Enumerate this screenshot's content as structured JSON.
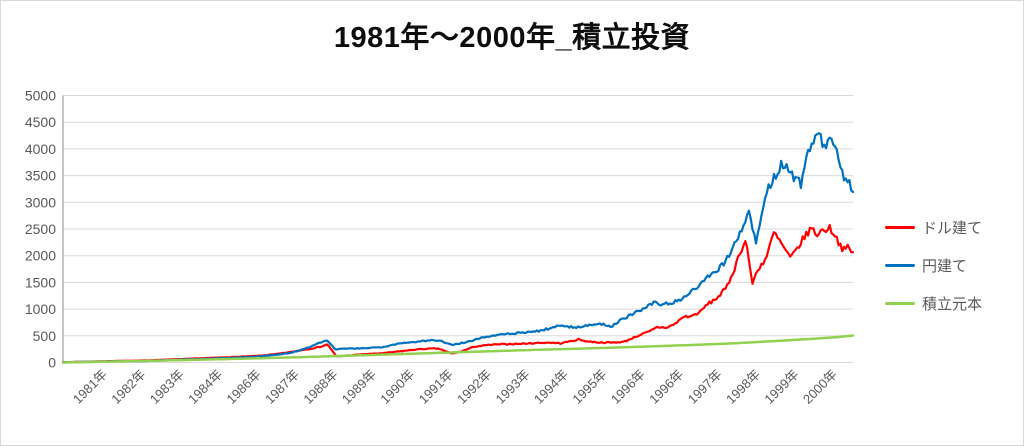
{
  "chart_data": {
    "type": "line",
    "title": "1981年〜2000年_積立投資",
    "x_axis": {
      "tick_labels": [
        "1981年",
        "1982年",
        "1983年",
        "1984年",
        "1986年",
        "1987年",
        "1988年",
        "1989年",
        "1990年",
        "1991年",
        "1992年",
        "1993年",
        "1994年",
        "1995年",
        "1996年",
        "1996年",
        "1997年",
        "1998年",
        "1999年",
        "2000年"
      ],
      "rotation_deg": -45
    },
    "y_axis": {
      "min": 0,
      "max": 5000,
      "tick_interval": 500,
      "tick_labels": [
        "0",
        "500",
        "1000",
        "1500",
        "2000",
        "2500",
        "3000",
        "3500",
        "4000",
        "4500",
        "5000"
      ]
    },
    "grid": {
      "horizontal": true,
      "color": "#d9d9d9"
    },
    "axis_style": {
      "y_axis_line_color": "#8c8c8c",
      "x_axis_line_color": "#d9d9d9",
      "text_color": "#595959",
      "title_color": "#0d0d0d"
    },
    "legend_position": "right",
    "series": [
      {
        "id": "usd",
        "name": "ドル建て",
        "color": "#ff0000",
        "jitter": 0.028,
        "points": [
          [
            0,
            5
          ],
          [
            0.02,
            12
          ],
          [
            0.05,
            22
          ],
          [
            0.07,
            30
          ],
          [
            0.09,
            34
          ],
          [
            0.11,
            42
          ],
          [
            0.13,
            54
          ],
          [
            0.15,
            64
          ],
          [
            0.17,
            75
          ],
          [
            0.19,
            88
          ],
          [
            0.21,
            98
          ],
          [
            0.23,
            112
          ],
          [
            0.25,
            128
          ],
          [
            0.27,
            158
          ],
          [
            0.285,
            188
          ],
          [
            0.3,
            228
          ],
          [
            0.315,
            262
          ],
          [
            0.327,
            300
          ],
          [
            0.335,
            340
          ],
          [
            0.346,
            112
          ],
          [
            0.36,
            130
          ],
          [
            0.38,
            155
          ],
          [
            0.403,
            172
          ],
          [
            0.428,
            212
          ],
          [
            0.45,
            248
          ],
          [
            0.47,
            262
          ],
          [
            0.478,
            250
          ],
          [
            0.492,
            165
          ],
          [
            0.505,
            210
          ],
          [
            0.52,
            295
          ],
          [
            0.54,
            330
          ],
          [
            0.56,
            345
          ],
          [
            0.58,
            350
          ],
          [
            0.6,
            365
          ],
          [
            0.615,
            372
          ],
          [
            0.63,
            360
          ],
          [
            0.645,
            405
          ],
          [
            0.652,
            432
          ],
          [
            0.665,
            392
          ],
          [
            0.68,
            375
          ],
          [
            0.695,
            372
          ],
          [
            0.71,
            388
          ],
          [
            0.72,
            452
          ],
          [
            0.731,
            520
          ],
          [
            0.742,
            578
          ],
          [
            0.752,
            660
          ],
          [
            0.765,
            655
          ],
          [
            0.775,
            725
          ],
          [
            0.785,
            855
          ],
          [
            0.795,
            865
          ],
          [
            0.807,
            950
          ],
          [
            0.815,
            1085
          ],
          [
            0.825,
            1175
          ],
          [
            0.833,
            1285
          ],
          [
            0.84,
            1400
          ],
          [
            0.85,
            1760
          ],
          [
            0.858,
            2110
          ],
          [
            0.865,
            2285
          ],
          [
            0.872,
            1465
          ],
          [
            0.88,
            1755
          ],
          [
            0.89,
            1950
          ],
          [
            0.9,
            2430
          ],
          [
            0.91,
            2205
          ],
          [
            0.921,
            1945
          ],
          [
            0.93,
            2150
          ],
          [
            0.938,
            2335
          ],
          [
            0.947,
            2520
          ],
          [
            0.954,
            2400
          ],
          [
            0.962,
            2480
          ],
          [
            0.97,
            2520
          ],
          [
            0.976,
            2430
          ],
          [
            0.982,
            2250
          ],
          [
            0.988,
            2105
          ],
          [
            0.994,
            2155
          ],
          [
            1,
            2035
          ]
        ]
      },
      {
        "id": "jpy",
        "name": "円建て",
        "color": "#0070c0",
        "jitter": 0.028,
        "points": [
          [
            0,
            5
          ],
          [
            0.02,
            10
          ],
          [
            0.05,
            18
          ],
          [
            0.07,
            24
          ],
          [
            0.09,
            22
          ],
          [
            0.11,
            30
          ],
          [
            0.13,
            42
          ],
          [
            0.15,
            55
          ],
          [
            0.17,
            62
          ],
          [
            0.19,
            72
          ],
          [
            0.21,
            85
          ],
          [
            0.23,
            98
          ],
          [
            0.25,
            115
          ],
          [
            0.27,
            145
          ],
          [
            0.285,
            170
          ],
          [
            0.3,
            230
          ],
          [
            0.315,
            305
          ],
          [
            0.327,
            380
          ],
          [
            0.335,
            415
          ],
          [
            0.344,
            250
          ],
          [
            0.36,
            258
          ],
          [
            0.38,
            268
          ],
          [
            0.403,
            285
          ],
          [
            0.428,
            360
          ],
          [
            0.45,
            395
          ],
          [
            0.465,
            415
          ],
          [
            0.478,
            410
          ],
          [
            0.492,
            330
          ],
          [
            0.505,
            365
          ],
          [
            0.516,
            400
          ],
          [
            0.53,
            470
          ],
          [
            0.55,
            520
          ],
          [
            0.565,
            540
          ],
          [
            0.58,
            555
          ],
          [
            0.6,
            585
          ],
          [
            0.615,
            635
          ],
          [
            0.63,
            695
          ],
          [
            0.645,
            660
          ],
          [
            0.66,
            680
          ],
          [
            0.675,
            715
          ],
          [
            0.682,
            720
          ],
          [
            0.694,
            675
          ],
          [
            0.705,
            785
          ],
          [
            0.72,
            900
          ],
          [
            0.738,
            1040
          ],
          [
            0.75,
            1130
          ],
          [
            0.76,
            1080
          ],
          [
            0.772,
            1130
          ],
          [
            0.782,
            1185
          ],
          [
            0.795,
            1320
          ],
          [
            0.807,
            1450
          ],
          [
            0.82,
            1650
          ],
          [
            0.833,
            1800
          ],
          [
            0.846,
            2050
          ],
          [
            0.858,
            2480
          ],
          [
            0.868,
            2800
          ],
          [
            0.877,
            2260
          ],
          [
            0.888,
            3100
          ],
          [
            0.9,
            3450
          ],
          [
            0.909,
            3720
          ],
          [
            0.918,
            3620
          ],
          [
            0.927,
            3390
          ],
          [
            0.934,
            3350
          ],
          [
            0.941,
            3850
          ],
          [
            0.947,
            4060
          ],
          [
            0.953,
            4300
          ],
          [
            0.958,
            4400
          ],
          [
            0.963,
            4010
          ],
          [
            0.97,
            4250
          ],
          [
            0.976,
            4110
          ],
          [
            0.981,
            3900
          ],
          [
            0.986,
            3520
          ],
          [
            0.992,
            3430
          ],
          [
            1,
            3260
          ]
        ]
      },
      {
        "id": "principal",
        "name": "積立元本",
        "color": "#92d050",
        "jitter": 0,
        "points": [
          [
            0,
            0
          ],
          [
            0.05,
            14
          ],
          [
            0.1,
            28
          ],
          [
            0.15,
            45
          ],
          [
            0.2,
            62
          ],
          [
            0.25,
            80
          ],
          [
            0.3,
            100
          ],
          [
            0.35,
            122
          ],
          [
            0.4,
            145
          ],
          [
            0.45,
            168
          ],
          [
            0.5,
            192
          ],
          [
            0.55,
            215
          ],
          [
            0.6,
            238
          ],
          [
            0.65,
            258
          ],
          [
            0.7,
            280
          ],
          [
            0.75,
            305
          ],
          [
            0.8,
            330
          ],
          [
            0.85,
            360
          ],
          [
            0.9,
            400
          ],
          [
            0.95,
            445
          ],
          [
            0.98,
            475
          ],
          [
            1,
            505
          ]
        ]
      }
    ]
  }
}
